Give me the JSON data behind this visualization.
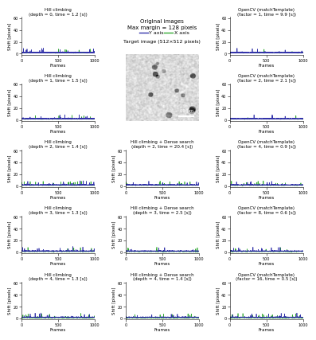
{
  "title_top_left": "Hill climbing\n(depth = 0, time = 1.2 [s])",
  "title_mid_left_1": "Hill climbing\n(depth = 1, time = 1.5 [s])",
  "title_mid_left_2": "Hill climbing\n(depth = 2, time = 1.4 [s])",
  "title_mid_left_3": "Hill climbing\n(depth = 3, time = 1.3 [s])",
  "title_bot_left": "Hill climbing\n(depth = 4, time = 1.3 [s])",
  "title_mid_mid_2": "Hill climbing + Dense search\n(depth = 2, time = 20.4 [s])",
  "title_mid_mid_3": "Hill climbing + Dense search\n(depth = 3, time = 2.5 [s])",
  "title_bot_mid": "Hill climbing + Dense search\n(depth = 4, time = 1.4 [s])",
  "title_top_right": "OpenCV (matchTemplate)\n(factor = 1, time = 9.9 [s])",
  "title_mid_right_1": "OpenCV (matchTemplate)\n(factor = 2, time = 2.1 [s])",
  "title_mid_right_2": "OpenCV (matchTemplate)\n(factor = 4, time = 0.9 [s])",
  "title_mid_right_3": "OpenCV (matchTemplate)\n(factor = 8, time = 0.6 [s])",
  "title_bot_right": "OpenCV (matchTemplate)\n(factor = 16, time = 0.5 [s])",
  "center_line1": "Original images",
  "center_line2": "Max margin = 128 pixels",
  "legend_y": "Y axis",
  "legend_x": "X axis",
  "center_subtitle": "Target image (512×512 pixels)",
  "scale_bar_text": "60 μm",
  "color_y": "#3333AA",
  "color_x": "#33AA33",
  "xlabel": "Frames",
  "ylabel": "Shift [pixels]",
  "xlim": [
    0,
    1000
  ],
  "ylim": [
    -2,
    62
  ],
  "yticks": [
    0,
    20,
    40,
    60
  ],
  "xticks": [
    0,
    500,
    1000
  ],
  "background": "#ffffff"
}
